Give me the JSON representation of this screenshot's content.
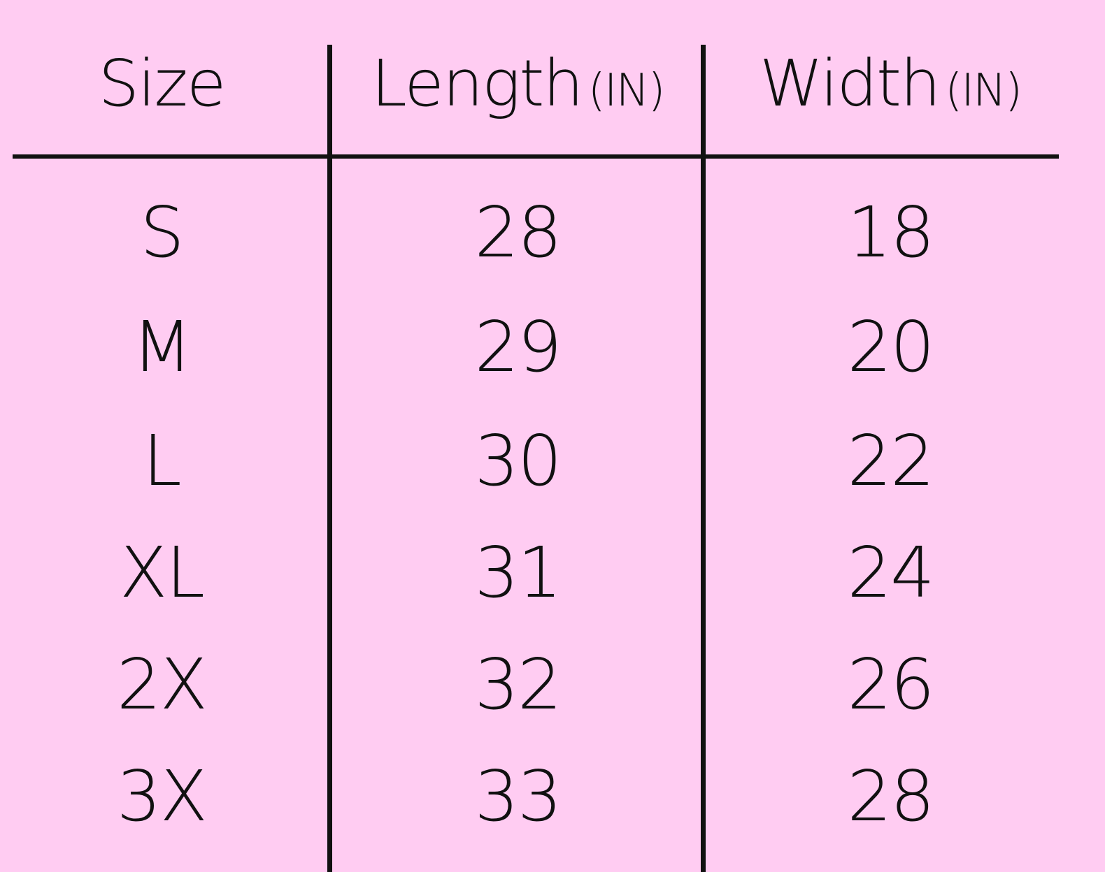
{
  "table": {
    "headers": [
      {
        "label": "Size",
        "unit": ""
      },
      {
        "label": "Length",
        "unit": "(IN)"
      },
      {
        "label": "Width",
        "unit": "(IN)"
      }
    ],
    "rows": [
      [
        "S",
        "28",
        "18"
      ],
      [
        "M",
        "29",
        "20"
      ],
      [
        "L",
        "30",
        "22"
      ],
      [
        "XL",
        "31",
        "24"
      ],
      [
        "2X",
        "32",
        "26"
      ],
      [
        "3X",
        "33",
        "28"
      ]
    ]
  },
  "colors": {
    "background": "#FFCCF2",
    "text": "#111111"
  }
}
